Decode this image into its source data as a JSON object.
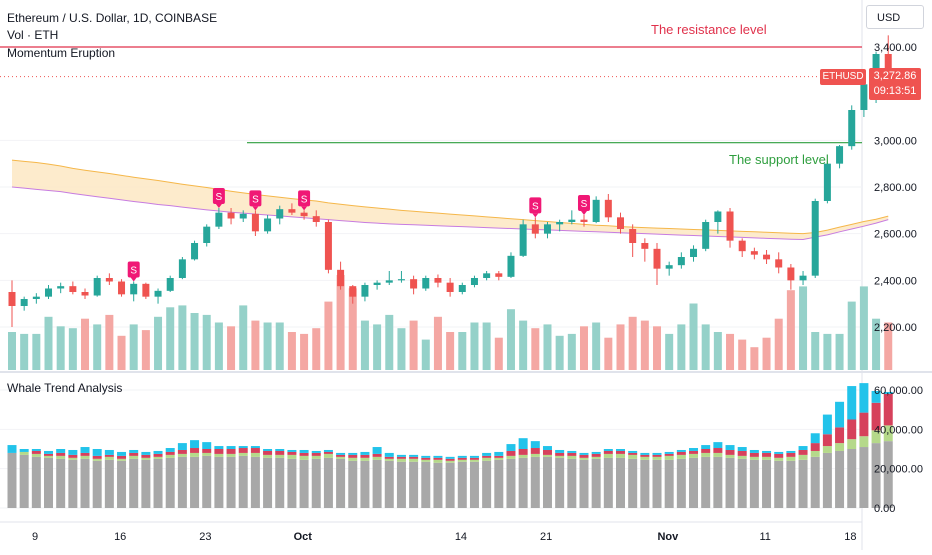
{
  "header": {
    "title": "Ethereum / U.S. Dollar, 1D, COINBASE",
    "volume_label": "Vol · ETH",
    "indicator1": "Momentum Eruption",
    "indicator2": "Whale Trend Analysis"
  },
  "currency_button": "USD",
  "price_marker": {
    "symbol": "ETHUSD",
    "price": "3,272.86",
    "countdown": "09:13:51"
  },
  "annotations": {
    "resistance": "The resistance level",
    "support": "The support level"
  },
  "colors": {
    "up": "#26a69a",
    "down": "#ef5350",
    "vol_up": "#95d1c9",
    "vol_down": "#f4a7a3",
    "resistance": "#e0314b",
    "support": "#2e9e3e",
    "band_fill": "#fde7c3",
    "band_upper": "#f5b74a",
    "band_lower": "#c77ce0",
    "sell_marker": "#f01875",
    "whale_gray": "#a8a8a8",
    "whale_green": "#b5d98a",
    "whale_red": "#d6415b",
    "whale_cyan": "#22c3ea"
  },
  "chart_data": [
    {
      "type": "candlestick",
      "title": "Ethereum / U.S. Dollar, 1D, COINBASE",
      "ylim": [
        2110,
        3530
      ],
      "y_ticks": [
        "3,400.00",
        "3,000.00",
        "2,800.00",
        "2,600.00",
        "2,400.00",
        "2,200.00"
      ],
      "y_tick_values": [
        3400,
        3000,
        2800,
        2600,
        2400,
        2200
      ],
      "x_ticks": [
        "9",
        "16",
        "23",
        "Oct",
        "14",
        "21",
        "Nov",
        "11",
        "18"
      ],
      "x_tick_index": [
        0,
        7,
        14,
        22,
        35,
        42,
        52,
        60,
        67
      ],
      "resistance_level": 3400,
      "support_level": 2990,
      "support_start_index": 22,
      "last_price": 3272.86,
      "sell_signal_indices": [
        10,
        17,
        20,
        24,
        43,
        47
      ],
      "candles": [
        [
          2350,
          2400,
          2200,
          2290
        ],
        [
          2290,
          2330,
          2270,
          2320
        ],
        [
          2320,
          2345,
          2300,
          2330
        ],
        [
          2330,
          2380,
          2320,
          2365
        ],
        [
          2365,
          2390,
          2345,
          2375
        ],
        [
          2375,
          2395,
          2340,
          2350
        ],
        [
          2350,
          2365,
          2320,
          2335
        ],
        [
          2335,
          2420,
          2330,
          2410
        ],
        [
          2410,
          2430,
          2380,
          2395
        ],
        [
          2395,
          2405,
          2330,
          2340
        ],
        [
          2340,
          2395,
          2310,
          2385
        ],
        [
          2385,
          2390,
          2320,
          2330
        ],
        [
          2330,
          2365,
          2300,
          2355
        ],
        [
          2355,
          2420,
          2350,
          2410
        ],
        [
          2410,
          2500,
          2405,
          2490
        ],
        [
          2490,
          2570,
          2485,
          2560
        ],
        [
          2560,
          2640,
          2545,
          2630
        ],
        [
          2630,
          2710,
          2620,
          2690
        ],
        [
          2690,
          2710,
          2640,
          2665
        ],
        [
          2665,
          2700,
          2650,
          2685
        ],
        [
          2685,
          2700,
          2590,
          2610
        ],
        [
          2610,
          2680,
          2600,
          2665
        ],
        [
          2665,
          2720,
          2640,
          2705
        ],
        [
          2705,
          2730,
          2680,
          2690
        ],
        [
          2690,
          2700,
          2660,
          2675
        ],
        [
          2675,
          2700,
          2630,
          2650
        ],
        [
          2650,
          2660,
          2430,
          2445
        ],
        [
          2445,
          2480,
          2360,
          2375
        ],
        [
          2375,
          2380,
          2300,
          2330
        ],
        [
          2330,
          2390,
          2310,
          2380
        ],
        [
          2380,
          2400,
          2360,
          2390
        ],
        [
          2390,
          2440,
          2380,
          2400
        ],
        [
          2400,
          2440,
          2390,
          2405
        ],
        [
          2405,
          2420,
          2340,
          2365
        ],
        [
          2365,
          2420,
          2355,
          2410
        ],
        [
          2410,
          2425,
          2370,
          2390
        ],
        [
          2390,
          2410,
          2330,
          2350
        ],
        [
          2350,
          2390,
          2340,
          2380
        ],
        [
          2380,
          2420,
          2370,
          2410
        ],
        [
          2410,
          2440,
          2400,
          2430
        ],
        [
          2430,
          2440,
          2400,
          2415
        ],
        [
          2415,
          2520,
          2410,
          2505
        ],
        [
          2505,
          2660,
          2500,
          2640
        ],
        [
          2640,
          2670,
          2580,
          2600
        ],
        [
          2600,
          2650,
          2580,
          2640
        ],
        [
          2640,
          2660,
          2610,
          2650
        ],
        [
          2650,
          2700,
          2640,
          2660
        ],
        [
          2660,
          2680,
          2630,
          2650
        ],
        [
          2650,
          2760,
          2645,
          2745
        ],
        [
          2745,
          2770,
          2650,
          2670
        ],
        [
          2670,
          2690,
          2600,
          2620
        ],
        [
          2620,
          2640,
          2500,
          2560
        ],
        [
          2560,
          2580,
          2480,
          2535
        ],
        [
          2535,
          2560,
          2380,
          2450
        ],
        [
          2450,
          2480,
          2420,
          2465
        ],
        [
          2465,
          2520,
          2450,
          2500
        ],
        [
          2500,
          2550,
          2480,
          2535
        ],
        [
          2535,
          2660,
          2525,
          2650
        ],
        [
          2650,
          2700,
          2600,
          2695
        ],
        [
          2695,
          2710,
          2540,
          2570
        ],
        [
          2570,
          2580,
          2500,
          2525
        ],
        [
          2525,
          2540,
          2490,
          2510
        ],
        [
          2510,
          2530,
          2470,
          2490
        ],
        [
          2490,
          2520,
          2430,
          2455
        ],
        [
          2455,
          2470,
          2360,
          2400
        ],
        [
          2400,
          2440,
          2380,
          2420
        ],
        [
          2420,
          2750,
          2410,
          2740
        ],
        [
          2740,
          2910,
          2730,
          2900
        ],
        [
          2900,
          2980,
          2880,
          2975
        ],
        [
          2975,
          3150,
          2960,
          3130
        ],
        [
          3130,
          3260,
          3100,
          3240
        ],
        [
          3240,
          3380,
          3160,
          3370
        ],
        [
          3370,
          3450,
          3200,
          3272.86
        ]
      ],
      "volume_up": [
        1,
        1,
        1,
        1,
        1,
        1,
        0,
        1,
        0,
        0,
        1,
        0,
        1,
        1,
        1,
        1,
        1,
        1,
        0,
        1,
        0,
        1,
        1,
        0,
        0,
        0,
        0,
        0,
        0,
        1,
        1,
        1,
        1,
        0,
        1,
        0,
        0,
        1,
        1,
        1,
        0,
        1,
        1,
        0,
        1,
        1,
        1,
        0,
        1,
        0,
        0,
        0,
        0,
        0,
        1,
        1,
        1,
        1,
        1,
        0,
        0,
        0,
        0,
        0,
        0,
        1,
        1,
        1,
        1,
        1,
        1,
        1,
        0
      ],
      "volume": [
        2.0,
        1.9,
        1.9,
        2.8,
        2.3,
        2.2,
        2.7,
        2.4,
        2.9,
        1.8,
        2.4,
        2.1,
        2.8,
        3.3,
        3.4,
        3.0,
        2.9,
        2.5,
        2.3,
        3.4,
        2.6,
        2.5,
        2.5,
        2.0,
        1.9,
        2.2,
        3.6,
        5.0,
        4.3,
        2.6,
        2.4,
        2.9,
        2.2,
        2.6,
        1.6,
        2.8,
        2.0,
        2.0,
        2.5,
        2.5,
        1.7,
        3.2,
        2.6,
        2.2,
        2.4,
        1.8,
        1.9,
        2.3,
        2.5,
        1.7,
        2.4,
        2.8,
        2.6,
        2.3,
        1.9,
        2.4,
        3.5,
        2.4,
        2.0,
        1.9,
        1.6,
        1.2,
        1.7,
        2.7,
        4.2,
        4.4,
        2.0,
        1.9,
        1.9,
        3.6,
        4.4,
        2.7,
        2.5
      ],
      "band_upper": [
        2915,
        2910,
        2905,
        2898,
        2890,
        2880,
        2872,
        2865,
        2858,
        2850,
        2842,
        2835,
        2828,
        2820,
        2812,
        2805,
        2798,
        2790,
        2782,
        2775,
        2768,
        2762,
        2756,
        2750,
        2745,
        2740,
        2732,
        2726,
        2720,
        2715,
        2710,
        2705,
        2700,
        2696,
        2692,
        2688,
        2684,
        2680,
        2676,
        2672,
        2668,
        2664,
        2660,
        2656,
        2652,
        2648,
        2644,
        2640,
        2636,
        2634,
        2630,
        2628,
        2626,
        2624,
        2622,
        2620,
        2618,
        2616,
        2614,
        2612,
        2610,
        2608,
        2606,
        2604,
        2602,
        2600,
        2605,
        2615,
        2628,
        2640,
        2652,
        2662,
        2675
      ],
      "band_lower": [
        2800,
        2795,
        2790,
        2785,
        2780,
        2772,
        2765,
        2758,
        2752,
        2745,
        2738,
        2732,
        2725,
        2720,
        2714,
        2708,
        2702,
        2697,
        2692,
        2688,
        2684,
        2680,
        2676,
        2672,
        2668,
        2664,
        2660,
        2656,
        2652,
        2648,
        2645,
        2642,
        2640,
        2638,
        2636,
        2634,
        2632,
        2630,
        2628,
        2626,
        2624,
        2622,
        2620,
        2618,
        2616,
        2614,
        2612,
        2610,
        2608,
        2606,
        2604,
        2602,
        2600,
        2598,
        2596,
        2594,
        2592,
        2590,
        2588,
        2586,
        2584,
        2582,
        2580,
        2578,
        2576,
        2575,
        2585,
        2595,
        2608,
        2620,
        2632,
        2645,
        2660
      ]
    },
    {
      "type": "bar",
      "title": "Whale Trend Analysis",
      "ylim": [
        -2000,
        65000
      ],
      "y_ticks": [
        "60,000.00",
        "40,000.00",
        "20,000.00",
        "0.00"
      ],
      "y_tick_values": [
        60000,
        40000,
        20000,
        0
      ],
      "stack_order": [
        "gray",
        "green",
        "red",
        "cyan"
      ],
      "gray": [
        28000,
        27000,
        26000,
        25500,
        25000,
        24500,
        25000,
        24000,
        24500,
        24000,
        25000,
        24500,
        25000,
        25500,
        26000,
        26000,
        26500,
        26000,
        26000,
        26500,
        26000,
        25500,
        25500,
        25000,
        24500,
        25000,
        25500,
        25000,
        24000,
        24000,
        24500,
        24000,
        23500,
        23500,
        23500,
        23000,
        23000,
        23500,
        23500,
        24000,
        24500,
        25000,
        25500,
        26000,
        26000,
        25500,
        25000,
        24500,
        25000,
        25500,
        25500,
        25000,
        24500,
        24500,
        24500,
        25000,
        25500,
        26000,
        26000,
        25500,
        25000,
        24500,
        24500,
        24000,
        24000,
        24500,
        26000,
        28000,
        29000,
        30000,
        31000,
        33000,
        34000
      ],
      "green": [
        0,
        1500,
        1500,
        1000,
        1500,
        1000,
        1500,
        1000,
        1500,
        1000,
        1500,
        1000,
        1000,
        1500,
        1500,
        2000,
        1500,
        1500,
        1500,
        1500,
        2000,
        1500,
        1500,
        2000,
        2000,
        1500,
        2000,
        1000,
        1500,
        1500,
        1500,
        1000,
        1500,
        1500,
        1000,
        1500,
        1000,
        1000,
        1000,
        1500,
        1000,
        1500,
        1500,
        1500,
        1000,
        1000,
        1500,
        1000,
        1000,
        2000,
        2000,
        2000,
        1500,
        1500,
        2000,
        2000,
        2000,
        2000,
        2000,
        1500,
        1500,
        1500,
        1500,
        1500,
        2000,
        2500,
        3000,
        3500,
        4000,
        5000,
        5500,
        6500,
        8000
      ],
      "red": [
        0,
        0,
        1500,
        1000,
        1500,
        1500,
        1500,
        1500,
        1000,
        1500,
        1500,
        1500,
        1500,
        1500,
        2000,
        2500,
        2000,
        2500,
        2500,
        2500,
        2500,
        2000,
        2000,
        1500,
        1500,
        1500,
        1000,
        1000,
        1500,
        1500,
        1500,
        1000,
        1000,
        1000,
        1000,
        1000,
        1000,
        1000,
        1000,
        1000,
        1000,
        2500,
        3000,
        3000,
        2500,
        1500,
        1500,
        1500,
        1500,
        1500,
        1500,
        1000,
        1000,
        1000,
        1000,
        1500,
        1500,
        2000,
        2500,
        2500,
        2500,
        2000,
        2000,
        2000,
        2000,
        2500,
        4000,
        6000,
        8000,
        10000,
        12000,
        14000,
        16000
      ],
      "cyan": [
        4000,
        1500,
        1000,
        1500,
        2000,
        2500,
        3000,
        3500,
        2500,
        2000,
        1500,
        1500,
        1500,
        2000,
        3500,
        4000,
        3500,
        1500,
        1500,
        1000,
        1000,
        1000,
        1000,
        1000,
        1500,
        1000,
        1000,
        1000,
        1000,
        1500,
        3500,
        2000,
        1000,
        1000,
        1000,
        1000,
        1000,
        1000,
        1000,
        1500,
        2000,
        3500,
        5500,
        3500,
        2000,
        1500,
        1000,
        1000,
        1000,
        1000,
        1000,
        1000,
        1000,
        1000,
        1000,
        1000,
        1500,
        2000,
        3000,
        2500,
        2000,
        1500,
        1000,
        1000,
        1000,
        2000,
        5000,
        10000,
        13000,
        17000,
        15000,
        6000,
        1000
      ]
    }
  ]
}
